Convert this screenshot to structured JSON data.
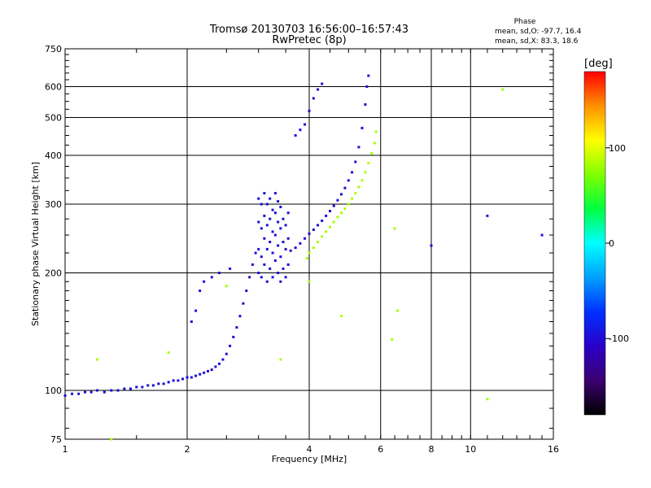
{
  "chart_data": {
    "type": "scatter",
    "title": "Tromsø 20130703 16:56:00–16:57:43",
    "subtitle": "RwPretec (8p)",
    "xlabel": "Frequency [MHz]",
    "ylabel": "Stationary phase Virtual Height [km]",
    "x_scale": "log",
    "y_scale": "log",
    "xlim": [
      1,
      16
    ],
    "ylim": [
      75,
      750
    ],
    "x_ticks": [
      1,
      2,
      4,
      6,
      8,
      10,
      16
    ],
    "y_ticks": [
      75,
      100,
      200,
      300,
      400,
      500,
      600,
      750
    ],
    "grid": true,
    "phase_box": {
      "title": "Phase",
      "line_o": "mean, sd,O: -97.7, 16.4",
      "line_x": "mean, sd,X:  83.3, 18.6"
    },
    "colorbar": {
      "label": "[deg]",
      "range": [
        -180,
        180
      ],
      "ticks": [
        -100,
        0,
        100
      ],
      "colors": [
        "#000000",
        "#3b0070",
        "#2a00c8",
        "#0030ff",
        "#00a0ff",
        "#00ffff",
        "#00ff40",
        "#80ff00",
        "#ffff00",
        "#ff9000",
        "#ff0000"
      ]
    },
    "series": [
      {
        "mode": "O",
        "mean_phase": -97.7,
        "points": [
          [
            1.0,
            97
          ],
          [
            1.04,
            98
          ],
          [
            1.08,
            98
          ],
          [
            1.12,
            99
          ],
          [
            1.16,
            99
          ],
          [
            1.2,
            100
          ],
          [
            1.25,
            99
          ],
          [
            1.3,
            100
          ],
          [
            1.35,
            100
          ],
          [
            1.4,
            101
          ],
          [
            1.45,
            101
          ],
          [
            1.5,
            102
          ],
          [
            1.55,
            102
          ],
          [
            1.6,
            103
          ],
          [
            1.65,
            103
          ],
          [
            1.7,
            104
          ],
          [
            1.75,
            104
          ],
          [
            1.8,
            105
          ],
          [
            1.85,
            106
          ],
          [
            1.9,
            106
          ],
          [
            1.95,
            107
          ],
          [
            2.0,
            108
          ],
          [
            2.05,
            108
          ],
          [
            2.1,
            109
          ],
          [
            2.15,
            110
          ],
          [
            2.2,
            111
          ],
          [
            2.25,
            112
          ],
          [
            2.3,
            113
          ],
          [
            2.35,
            115
          ],
          [
            2.4,
            117
          ],
          [
            2.45,
            120
          ],
          [
            2.5,
            124
          ],
          [
            2.55,
            130
          ],
          [
            2.6,
            137
          ],
          [
            2.65,
            145
          ],
          [
            2.7,
            155
          ],
          [
            2.75,
            167
          ],
          [
            2.8,
            180
          ],
          [
            2.85,
            195
          ],
          [
            2.9,
            210
          ],
          [
            2.95,
            225
          ],
          [
            3.0,
            200
          ],
          [
            3.0,
            230
          ],
          [
            3.0,
            270
          ],
          [
            3.0,
            310
          ],
          [
            3.05,
            195
          ],
          [
            3.05,
            220
          ],
          [
            3.05,
            260
          ],
          [
            3.05,
            300
          ],
          [
            3.1,
            210
          ],
          [
            3.1,
            245
          ],
          [
            3.1,
            280
          ],
          [
            3.1,
            320
          ],
          [
            3.15,
            190
          ],
          [
            3.15,
            230
          ],
          [
            3.15,
            265
          ],
          [
            3.15,
            300
          ],
          [
            3.2,
            205
          ],
          [
            3.2,
            240
          ],
          [
            3.2,
            275
          ],
          [
            3.2,
            310
          ],
          [
            3.25,
            195
          ],
          [
            3.25,
            225
          ],
          [
            3.25,
            255
          ],
          [
            3.25,
            290
          ],
          [
            3.3,
            215
          ],
          [
            3.3,
            250
          ],
          [
            3.3,
            285
          ],
          [
            3.3,
            320
          ],
          [
            3.35,
            200
          ],
          [
            3.35,
            235
          ],
          [
            3.35,
            270
          ],
          [
            3.35,
            305
          ],
          [
            3.4,
            190
          ],
          [
            3.4,
            220
          ],
          [
            3.4,
            260
          ],
          [
            3.4,
            295
          ],
          [
            3.45,
            205
          ],
          [
            3.45,
            240
          ],
          [
            3.45,
            275
          ],
          [
            3.5,
            195
          ],
          [
            3.5,
            230
          ],
          [
            3.5,
            265
          ],
          [
            3.55,
            210
          ],
          [
            3.55,
            245
          ],
          [
            3.55,
            285
          ],
          [
            3.6,
            228
          ],
          [
            3.7,
            232
          ],
          [
            3.8,
            238
          ],
          [
            3.9,
            245
          ],
          [
            4.0,
            252
          ],
          [
            4.1,
            258
          ],
          [
            4.2,
            265
          ],
          [
            4.3,
            272
          ],
          [
            4.4,
            280
          ],
          [
            4.5,
            288
          ],
          [
            4.6,
            297
          ],
          [
            4.7,
            307
          ],
          [
            4.8,
            318
          ],
          [
            4.9,
            330
          ],
          [
            5.0,
            345
          ],
          [
            5.1,
            362
          ],
          [
            5.2,
            385
          ],
          [
            5.3,
            420
          ],
          [
            5.4,
            470
          ],
          [
            5.5,
            540
          ],
          [
            5.55,
            600
          ],
          [
            5.6,
            640
          ],
          [
            2.05,
            150
          ],
          [
            2.1,
            160
          ],
          [
            2.15,
            180
          ],
          [
            2.2,
            190
          ],
          [
            2.3,
            195
          ],
          [
            2.4,
            200
          ],
          [
            2.55,
            205
          ],
          [
            3.7,
            450
          ],
          [
            3.8,
            465
          ],
          [
            3.9,
            480
          ],
          [
            4.0,
            520
          ],
          [
            4.1,
            560
          ],
          [
            4.2,
            590
          ],
          [
            4.3,
            610
          ],
          [
            8.0,
            235
          ],
          [
            11.0,
            280
          ],
          [
            15.0,
            250
          ]
        ]
      },
      {
        "mode": "X",
        "mean_phase": 83.3,
        "points": [
          [
            3.95,
            218
          ],
          [
            4.0,
            225
          ],
          [
            4.1,
            232
          ],
          [
            4.2,
            240
          ],
          [
            4.3,
            248
          ],
          [
            4.4,
            255
          ],
          [
            4.5,
            262
          ],
          [
            4.6,
            270
          ],
          [
            4.7,
            278
          ],
          [
            4.8,
            285
          ],
          [
            4.9,
            292
          ],
          [
            5.0,
            300
          ],
          [
            5.1,
            310
          ],
          [
            5.2,
            320
          ],
          [
            5.3,
            332
          ],
          [
            5.4,
            345
          ],
          [
            5.5,
            362
          ],
          [
            5.6,
            382
          ],
          [
            5.7,
            405
          ],
          [
            5.8,
            430
          ],
          [
            5.85,
            460
          ],
          [
            1.2,
            120
          ],
          [
            1.8,
            125
          ],
          [
            2.5,
            185
          ],
          [
            3.4,
            120
          ],
          [
            4.0,
            190
          ],
          [
            4.8,
            155
          ],
          [
            6.5,
            260
          ],
          [
            6.6,
            160
          ],
          [
            6.4,
            135
          ],
          [
            11.0,
            95
          ],
          [
            12.0,
            590
          ],
          [
            1.3,
            75
          ]
        ]
      }
    ]
  }
}
